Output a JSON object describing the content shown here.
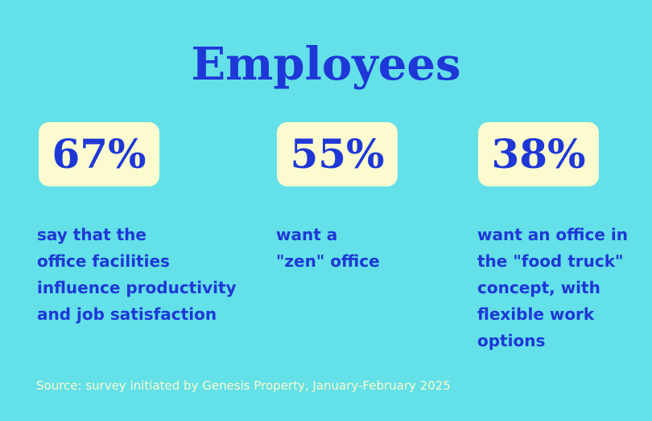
{
  "title": "Employees",
  "stats": [
    {
      "value": "67%",
      "description_lines": [
        "say that the",
        "office facilities",
        "influence productivity",
        "and job satisfaction"
      ]
    },
    {
      "value": "55%",
      "description_lines": [
        "want a",
        "\"zen\" office"
      ]
    },
    {
      "value": "38%",
      "description_lines": [
        "want an office in",
        "the \"food truck\"",
        "concept, with",
        "flexible work",
        "options"
      ]
    }
  ],
  "source": "Source: survey initiated by Genesis Property, January-February 2025",
  "colors": {
    "background": "#63e0e8",
    "accent": "#1e37d6",
    "box": "#fbfbcf"
  }
}
